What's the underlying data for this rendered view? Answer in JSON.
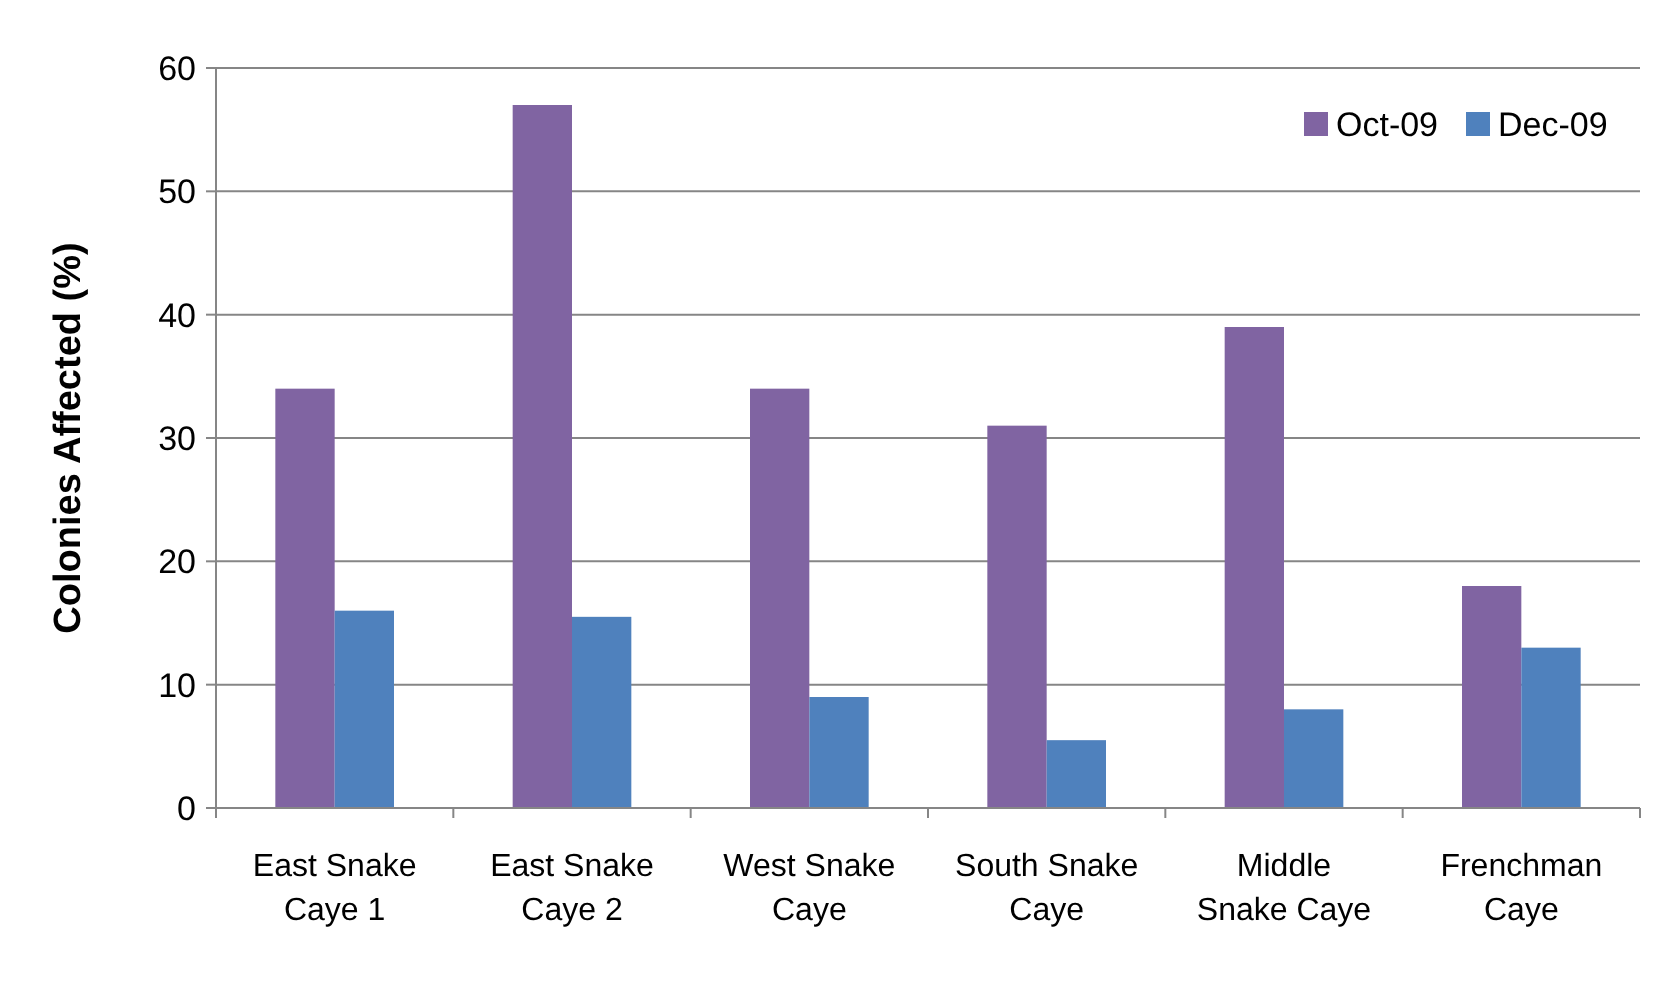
{
  "chart_data": {
    "type": "bar",
    "ylabel": "Colonies Affected (%)",
    "categories": [
      "East Snake Caye 1",
      "East Snake Caye 2",
      "West Snake Caye",
      "South Snake Caye",
      "Middle Snake Caye",
      "Frenchman Caye"
    ],
    "series": [
      {
        "name": "Oct-09",
        "color": "#8064a2",
        "values": [
          34,
          57,
          34,
          31,
          39,
          18
        ]
      },
      {
        "name": "Dec-09",
        "color": "#4f81bd",
        "values": [
          16,
          15.5,
          9,
          5.5,
          8,
          13
        ]
      }
    ],
    "ylim": [
      0,
      60
    ],
    "yticks": [
      0,
      10,
      20,
      30,
      40,
      50,
      60
    ],
    "grid": "y",
    "legend": "top right"
  }
}
